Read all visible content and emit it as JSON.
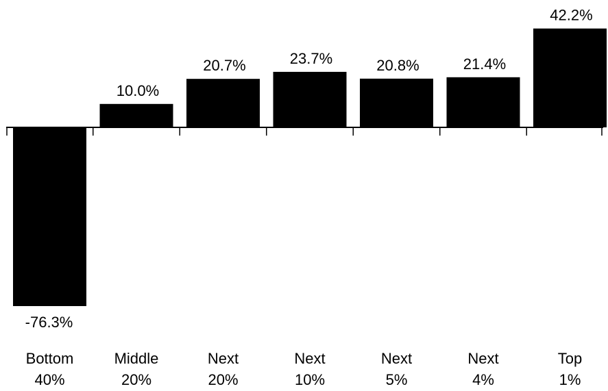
{
  "chart_data": {
    "type": "bar",
    "title": "",
    "xlabel": "",
    "ylabel": "",
    "categories": [
      [
        "Bottom",
        "40%"
      ],
      [
        "Middle",
        "20%"
      ],
      [
        "Next",
        "20%"
      ],
      [
        "Next",
        "10%"
      ],
      [
        "Next",
        "5%"
      ],
      [
        "Next",
        "4%"
      ],
      [
        "Top",
        "1%"
      ]
    ],
    "values": [
      -76.3,
      10.0,
      20.7,
      23.7,
      20.8,
      21.4,
      42.2
    ],
    "value_labels": [
      "-76.3%",
      "10.0%",
      "20.7%",
      "23.7%",
      "20.8%",
      "21.4%",
      "42.2%"
    ],
    "ylim": [
      -76.3,
      42.2
    ],
    "grid": false,
    "bar_color": "#000000"
  }
}
